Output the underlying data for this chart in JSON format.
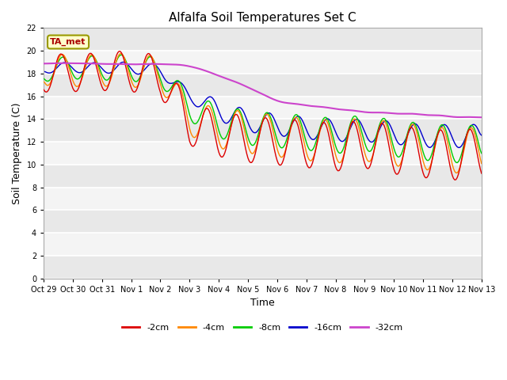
{
  "title": "Alfalfa Soil Temperatures Set C",
  "xlabel": "Time",
  "ylabel": "Soil Temperature (C)",
  "ylim": [
    0,
    22
  ],
  "yticks": [
    0,
    2,
    4,
    6,
    8,
    10,
    12,
    14,
    16,
    18,
    20,
    22
  ],
  "annotation_text": "TA_met",
  "annotation_color": "#aa0000",
  "annotation_bg": "#ffffcc",
  "annotation_edge": "#999900",
  "legend_entries": [
    "-2cm",
    "-4cm",
    "-8cm",
    "-16cm",
    "-32cm"
  ],
  "line_colors": [
    "#dd0000",
    "#ff8800",
    "#00cc00",
    "#0000cc",
    "#cc44cc"
  ],
  "x_tick_labels": [
    "Oct 29",
    "Oct 30",
    "Oct 31",
    "Nov 1",
    "Nov 2",
    "Nov 3",
    "Nov 4",
    "Nov 5",
    "Nov 6",
    "Nov 7",
    "Nov 8",
    "Nov 9",
    "Nov 10",
    "Nov 11",
    "Nov 12",
    "Nov 13"
  ],
  "fig_bg": "#ffffff",
  "plot_bg": "#f0f0f0",
  "plot_bg_alt": "#e0e0e0",
  "grid_color": "#ffffff"
}
